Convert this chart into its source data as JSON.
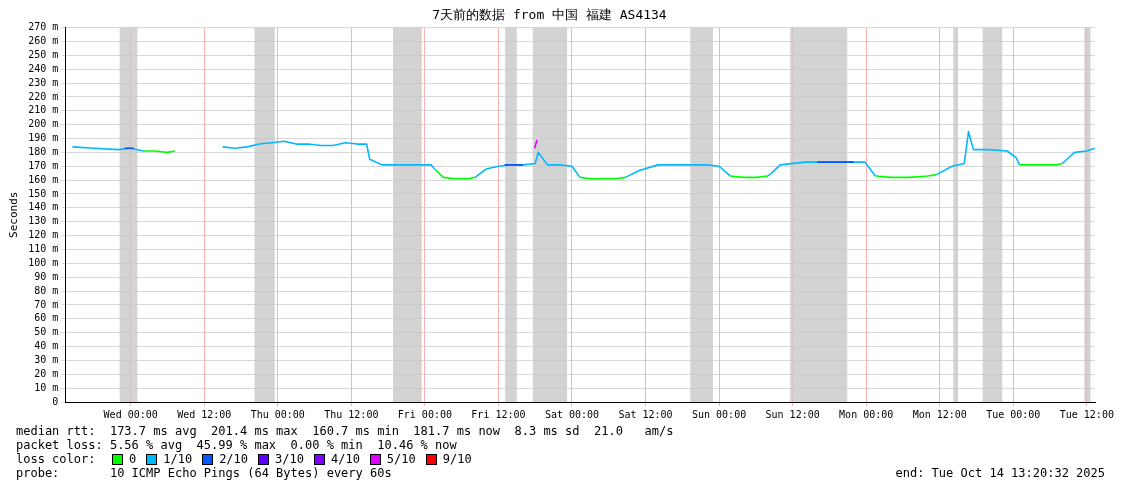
{
  "chart_data": {
    "type": "line",
    "title": "7天前的数据 from 中国 福建 AS4134",
    "ylabel": "Seconds",
    "legend_title": "loss color:",
    "legend": "bottom",
    "grid": true,
    "xlim": [
      "2025-10-07T13:20",
      "2025-10-14T13:20"
    ],
    "xticks": [
      {
        "value": "2025-10-08T00:00",
        "label": "Wed 00:00"
      },
      {
        "value": "2025-10-08T12:00",
        "label": "Wed 12:00"
      },
      {
        "value": "2025-10-09T00:00",
        "label": "Thu 00:00"
      },
      {
        "value": "2025-10-09T12:00",
        "label": "Thu 12:00"
      },
      {
        "value": "2025-10-10T00:00",
        "label": "Fri 00:00"
      },
      {
        "value": "2025-10-10T12:00",
        "label": "Fri 12:00"
      },
      {
        "value": "2025-10-11T00:00",
        "label": "Sat 00:00"
      },
      {
        "value": "2025-10-11T12:00",
        "label": "Sat 12:00"
      },
      {
        "value": "2025-10-12T00:00",
        "label": "Sun 00:00"
      },
      {
        "value": "2025-10-12T12:00",
        "label": "Sun 12:00"
      },
      {
        "value": "2025-10-13T00:00",
        "label": "Mon 00:00"
      },
      {
        "value": "2025-10-13T12:00",
        "label": "Mon 12:00"
      },
      {
        "value": "2025-10-14T00:00",
        "label": "Tue 00:00"
      },
      {
        "value": "2025-10-14T12:00",
        "label": "Tue 12:00"
      }
    ],
    "ylim": [
      0,
      270
    ],
    "yticks": [
      0,
      {
        "value": 10,
        "label": "10 m"
      },
      {
        "value": 20,
        "label": "20 m"
      },
      {
        "value": 30,
        "label": "30 m"
      },
      {
        "value": 40,
        "label": "40 m"
      },
      {
        "value": 50,
        "label": "50 m"
      },
      {
        "value": 60,
        "label": "60 m"
      },
      {
        "value": 70,
        "label": "70 m"
      },
      {
        "value": 80,
        "label": "80 m"
      },
      {
        "value": 90,
        "label": "90 m"
      },
      {
        "value": 100,
        "label": "100 m"
      },
      {
        "value": 110,
        "label": "110 m"
      },
      {
        "value": 120,
        "label": "120 m"
      },
      {
        "value": 130,
        "label": "130 m"
      },
      {
        "value": 140,
        "label": "140 m"
      },
      {
        "value": 150,
        "label": "150 m"
      },
      {
        "value": 160,
        "label": "160 m"
      },
      {
        "value": 170,
        "label": "170 m"
      },
      {
        "value": 180,
        "label": "180 m"
      },
      {
        "value": 190,
        "label": "190 m"
      },
      {
        "value": 200,
        "label": "200 m"
      },
      {
        "value": 210,
        "label": "210 m"
      },
      {
        "value": 220,
        "label": "220 m"
      },
      {
        "value": 230,
        "label": "230 m"
      },
      {
        "value": 240,
        "label": "240 m"
      },
      {
        "value": 250,
        "label": "250 m"
      },
      {
        "value": 260,
        "label": "260 m"
      },
      {
        "value": 270,
        "label": "270 m"
      }
    ],
    "series": [
      {
        "name": "0",
        "color": "#00ff00",
        "x": [
          "2025-10-08T02:00",
          "2025-10-08T04:00",
          "2025-10-08T06:00",
          "2025-10-08T07:12",
          "2025-10-08T08:00",
          "2025-10-10T01:36",
          "2025-10-10T03:00",
          "2025-10-10T05:00",
          "2025-10-10T07:00",
          "2025-10-10T08:12",
          "2025-10-10T09:00",
          "2025-10-11T01:18",
          "2025-10-11T03:00",
          "2025-10-11T05:00",
          "2025-10-11T07:00",
          "2025-10-11T08:42",
          "2025-10-11T09:00",
          "2025-10-12T01:48",
          "2025-10-12T04:00",
          "2025-10-12T06:00",
          "2025-10-12T08:00",
          "2025-10-12T09:00",
          "2025-10-13T01:30",
          "2025-10-13T04:00",
          "2025-10-13T07:00",
          "2025-10-13T10:00",
          "2025-10-13T11:30",
          "2025-10-13T12:00",
          "2025-10-14T01:00",
          "2025-10-14T03:00",
          "2025-10-14T05:00",
          "2025-10-14T07:00",
          "2025-10-14T08:00"
        ],
        "values": [
          181,
          181,
          180,
          181,
          null,
          168,
          162,
          161,
          161,
          162,
          null,
          162,
          161,
          161,
          161,
          162,
          null,
          163,
          162,
          162,
          163,
          null,
          163,
          162,
          162,
          163,
          164,
          null,
          171,
          171,
          171,
          171,
          172
        ]
      },
      {
        "name": "1/10",
        "color": "#00b8ff",
        "x": [
          "2025-10-07T14:30",
          "2025-10-07T18:00",
          "2025-10-07T22:00",
          "2025-10-08T00:00",
          "2025-10-08T02:00",
          "2025-10-08T08:00",
          "2025-10-08T15:00",
          "2025-10-08T17:00",
          "2025-10-08T19:00",
          "2025-10-08T21:00",
          "2025-10-08T23:00",
          "2025-10-09T01:00",
          "2025-10-09T03:00",
          "2025-10-09T05:00",
          "2025-10-09T07:00",
          "2025-10-09T09:00",
          "2025-10-09T11:00",
          "2025-10-09T13:00",
          "2025-10-09T14:30",
          "2025-10-09T15:00",
          "2025-10-09T17:00",
          "2025-10-09T21:00",
          "2025-10-10T01:00",
          "2025-10-10T01:36",
          "2025-10-10T02:00",
          "2025-10-10T08:12",
          "2025-10-10T10:00",
          "2025-10-10T12:00",
          "2025-10-10T14:00",
          "2025-10-10T16:00",
          "2025-10-10T18:00",
          "2025-10-10T18:30",
          "2025-10-10T20:00",
          "2025-10-10T22:00",
          "2025-10-11T00:00",
          "2025-10-11T01:18",
          "2025-10-11T02:00",
          "2025-10-11T08:42",
          "2025-10-11T11:00",
          "2025-10-11T14:00",
          "2025-10-11T18:00",
          "2025-10-11T22:00",
          "2025-10-12T00:00",
          "2025-10-12T01:48",
          "2025-10-12T02:00",
          "2025-10-12T08:00",
          "2025-10-12T10:00",
          "2025-10-12T14:00",
          "2025-10-12T18:00",
          "2025-10-12T22:00",
          "2025-10-12T23:48",
          "2025-10-13T01:30",
          "2025-10-13T02:00",
          "2025-10-13T11:30",
          "2025-10-13T14:00",
          "2025-10-13T16:00",
          "2025-10-13T16:42",
          "2025-10-13T17:30",
          "2025-10-13T20:00",
          "2025-10-13T23:00",
          "2025-10-14T00:30",
          "2025-10-14T01:00",
          "2025-10-14T02:00",
          "2025-10-14T08:00",
          "2025-10-14T10:00",
          "2025-10-14T12:00",
          "2025-10-14T13:18"
        ],
        "values": [
          184,
          183,
          182,
          183,
          181,
          null,
          184,
          183,
          184,
          186,
          187,
          188,
          186,
          186,
          185,
          185,
          187,
          186,
          186,
          175,
          171,
          171,
          171,
          168,
          null,
          162,
          168,
          170,
          171,
          171,
          172,
          180,
          171,
          171,
          170,
          162,
          null,
          162,
          167,
          171,
          171,
          171,
          170,
          163,
          null,
          163,
          171,
          173,
          173,
          173,
          173,
          163,
          null,
          164,
          170,
          172,
          195,
          182,
          182,
          181,
          176,
          171,
          null,
          172,
          180,
          181,
          183
        ]
      },
      {
        "name": "2/10",
        "color": "#0059ff",
        "x": [
          "2025-10-07T23:00",
          "2025-10-08T00:30",
          "2025-10-08T01:00",
          "2025-10-10T13:00",
          "2025-10-10T16:00",
          "2025-10-10T17:00",
          "2025-10-12T16:00",
          "2025-10-12T22:00"
        ],
        "values": [
          183,
          183,
          null,
          171,
          171,
          null,
          173,
          173
        ]
      },
      {
        "name": "3/10",
        "color": "#5e00ff"
      },
      {
        "name": "4/10",
        "color": "#7e00ff"
      },
      {
        "name": "5/10",
        "color": "#dd00ff",
        "x": [
          "2025-10-10T17:54",
          "2025-10-10T18:18"
        ],
        "values": [
          183,
          189
        ]
      },
      {
        "name": "9/10",
        "color": "#ff0000"
      }
    ],
    "bands": [
      {
        "axis": "x",
        "from": "2025-10-07T22:12",
        "to": "2025-10-08T01:06",
        "color": "#c8c8c8"
      },
      {
        "axis": "x",
        "from": "2025-10-08T20:12",
        "to": "2025-10-08T23:30",
        "color": "#c8c8c8"
      },
      {
        "axis": "x",
        "from": "2025-10-09T18:48",
        "to": "2025-10-09T23:30",
        "color": "#c8c8c8"
      },
      {
        "axis": "x",
        "from": "2025-10-10T13:06",
        "to": "2025-10-10T15:00",
        "color": "#c8c8c8"
      },
      {
        "axis": "x",
        "from": "2025-10-10T17:36",
        "to": "2025-10-10T23:12",
        "color": "#c8c8c8"
      },
      {
        "axis": "x",
        "from": "2025-10-11T19:18",
        "to": "2025-10-11T23:00",
        "color": "#c8c8c8"
      },
      {
        "axis": "x",
        "from": "2025-10-12T11:36",
        "to": "2025-10-12T20:54",
        "color": "#c8c8c8"
      },
      {
        "axis": "x",
        "from": "2025-10-13T14:12",
        "to": "2025-10-13T15:00",
        "color": "#c8c8c8"
      },
      {
        "axis": "x",
        "from": "2025-10-13T19:00",
        "to": "2025-10-13T22:12",
        "color": "#c8c8c8"
      },
      {
        "axis": "x",
        "from": "2025-10-14T11:36",
        "to": "2025-10-14T12:36",
        "color": "#c8c8c8"
      }
    ],
    "annotations": [
      "median rtt:  173.7 ms avg  201.4 ms max  160.7 ms min  181.7 ms now  8.3 ms sd  21.0   am/s",
      "packet loss: 5.56 % avg  45.99 % max  0.00 % min  10.46 % now",
      "probe:       10 ICMP Echo Pings (64 Bytes) every 60s",
      "end: Tue Oct 14 13:20:32 2025"
    ]
  }
}
